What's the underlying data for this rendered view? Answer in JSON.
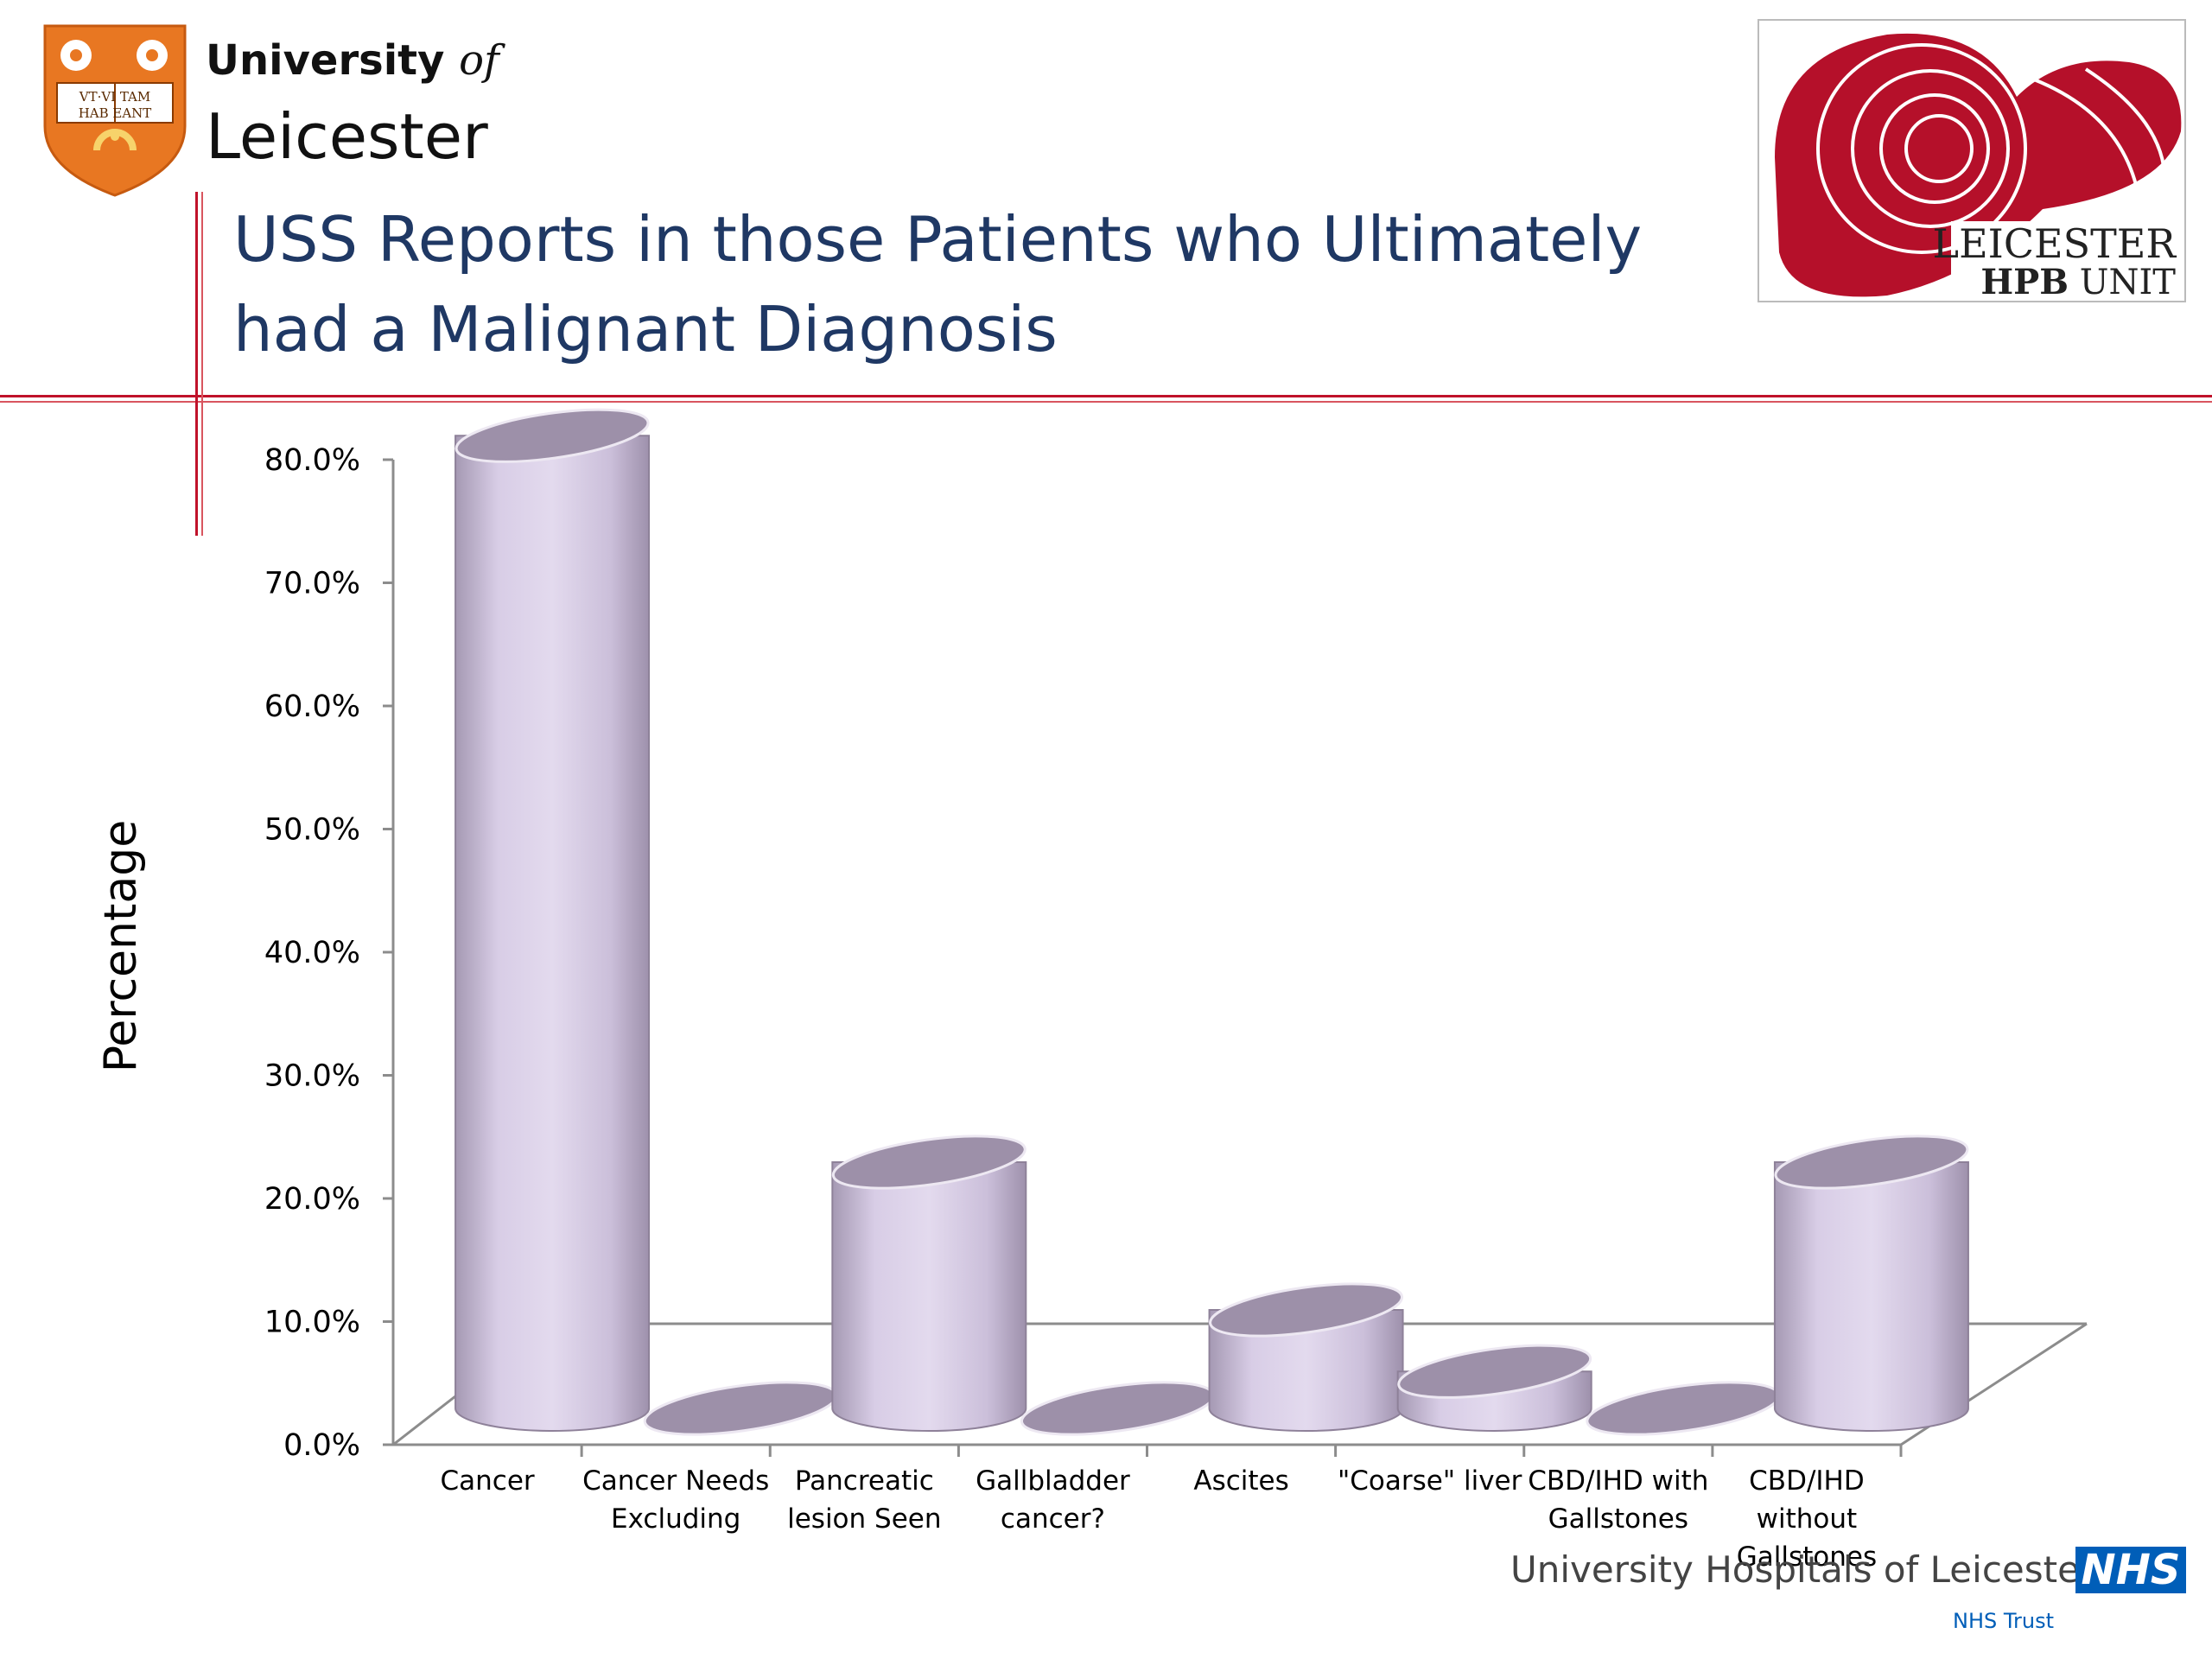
{
  "header": {
    "university_word": "University",
    "university_of": "of",
    "university_name": "Leicester",
    "crest_motto": [
      "VT·VI TAM",
      "HAB EANT"
    ],
    "hpb_logo": {
      "line1": "LEICESTER",
      "line2_bold": "HPB",
      "line2_rest": "UNIT"
    }
  },
  "slide": {
    "title_lines": [
      "USS Reports in those Patients who Ultimately",
      "had a Malignant Diagnosis"
    ]
  },
  "footer": {
    "trust_name": "University Hospitals of Leicester",
    "nhs_badge": "NHS",
    "nhs_trust": "NHS Trust"
  },
  "colors": {
    "title": "#1f3864",
    "accent_red": "#c0122a",
    "bar_body": "#d8cde6",
    "bar_top": "#9d90a9",
    "nhs_blue": "#005eb8",
    "crest_orange": "#e87722"
  },
  "chart_data": {
    "type": "bar",
    "style": "3d-cylinder",
    "title": "",
    "xlabel": "",
    "ylabel": "Percentage",
    "ylim": [
      0,
      80
    ],
    "y_ticks": [
      "0.0%",
      "10.0%",
      "20.0%",
      "30.0%",
      "40.0%",
      "50.0%",
      "60.0%",
      "70.0%",
      "80.0%"
    ],
    "categories": [
      [
        "Cancer"
      ],
      [
        "Cancer Needs",
        "Excluding"
      ],
      [
        "Pancreatic",
        "lesion Seen"
      ],
      [
        "Gallbladder",
        "cancer?"
      ],
      [
        "Ascites"
      ],
      [
        "\"Coarse\" liver"
      ],
      [
        "CBD/IHD with",
        "Gallstones"
      ],
      [
        "CBD/IHD",
        "without",
        "Gallstones"
      ]
    ],
    "values": [
      79,
      0,
      20,
      0,
      8,
      3,
      0,
      20
    ],
    "grid": false,
    "legend": "none"
  }
}
